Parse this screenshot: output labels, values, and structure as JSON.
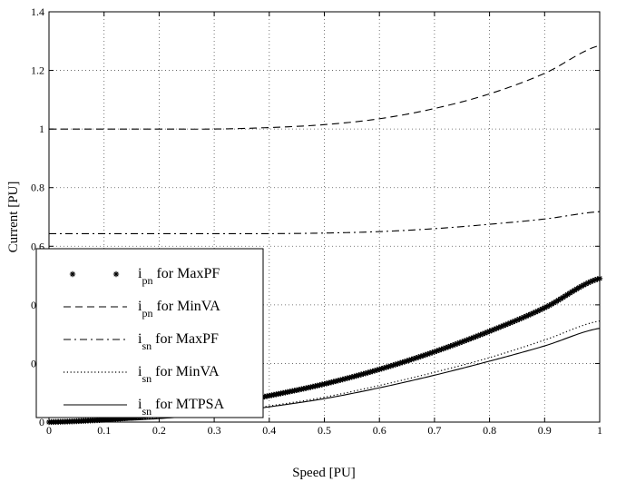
{
  "chart_data": {
    "type": "line",
    "title": "",
    "xlabel": "Speed [PU]",
    "ylabel": "Current [PU]",
    "xlim": [
      0,
      1
    ],
    "ylim": [
      0,
      1.4
    ],
    "xticks": [
      "0",
      "0.1",
      "0.2",
      "0.3",
      "0.4",
      "0.5",
      "0.6",
      "0.7",
      "0.8",
      "0.9",
      "1"
    ],
    "yticks": [
      "0",
      "0.2",
      "0.4",
      "0.6",
      "0.8",
      "1",
      "1.2",
      "1.4"
    ],
    "grid": true,
    "legend_position": "center-left",
    "x": [
      0,
      0.1,
      0.2,
      0.3,
      0.4,
      0.5,
      0.6,
      0.7,
      0.8,
      0.9,
      1.0
    ],
    "series": [
      {
        "name": "i_pn for MaxPF",
        "legend_symbol": "i",
        "legend_sub": "pn",
        "legend_suffix": "for MaxPF",
        "style": "star",
        "values": [
          0.0,
          0.008,
          0.025,
          0.055,
          0.09,
          0.13,
          0.18,
          0.24,
          0.31,
          0.39,
          0.49
        ]
      },
      {
        "name": "i_pn for MinVA",
        "legend_symbol": "i",
        "legend_sub": "pn",
        "legend_suffix": "for MinVA",
        "style": "dashed",
        "values": [
          1.0,
          1.0,
          1.0,
          1.0,
          1.005,
          1.015,
          1.035,
          1.07,
          1.12,
          1.19,
          1.285
        ]
      },
      {
        "name": "i_sn for MaxPF",
        "legend_symbol": "i",
        "legend_sub": "sn",
        "legend_suffix": "for MaxPF",
        "style": "dashdot",
        "values": [
          0.643,
          0.643,
          0.643,
          0.643,
          0.643,
          0.645,
          0.65,
          0.66,
          0.675,
          0.693,
          0.718
        ]
      },
      {
        "name": "i_sn for MinVA",
        "legend_symbol": "i",
        "legend_sub": "sn",
        "legend_suffix": "for MinVA",
        "style": "dotted",
        "values": [
          0.0,
          0.003,
          0.013,
          0.03,
          0.055,
          0.085,
          0.125,
          0.17,
          0.22,
          0.28,
          0.345
        ]
      },
      {
        "name": "i_sn for MTPSA",
        "legend_symbol": "i",
        "legend_sub": "sn",
        "legend_suffix": "for MTPSA",
        "style": "solid",
        "values": [
          0.0,
          0.003,
          0.012,
          0.028,
          0.052,
          0.08,
          0.117,
          0.16,
          0.208,
          0.26,
          0.32
        ]
      }
    ]
  }
}
